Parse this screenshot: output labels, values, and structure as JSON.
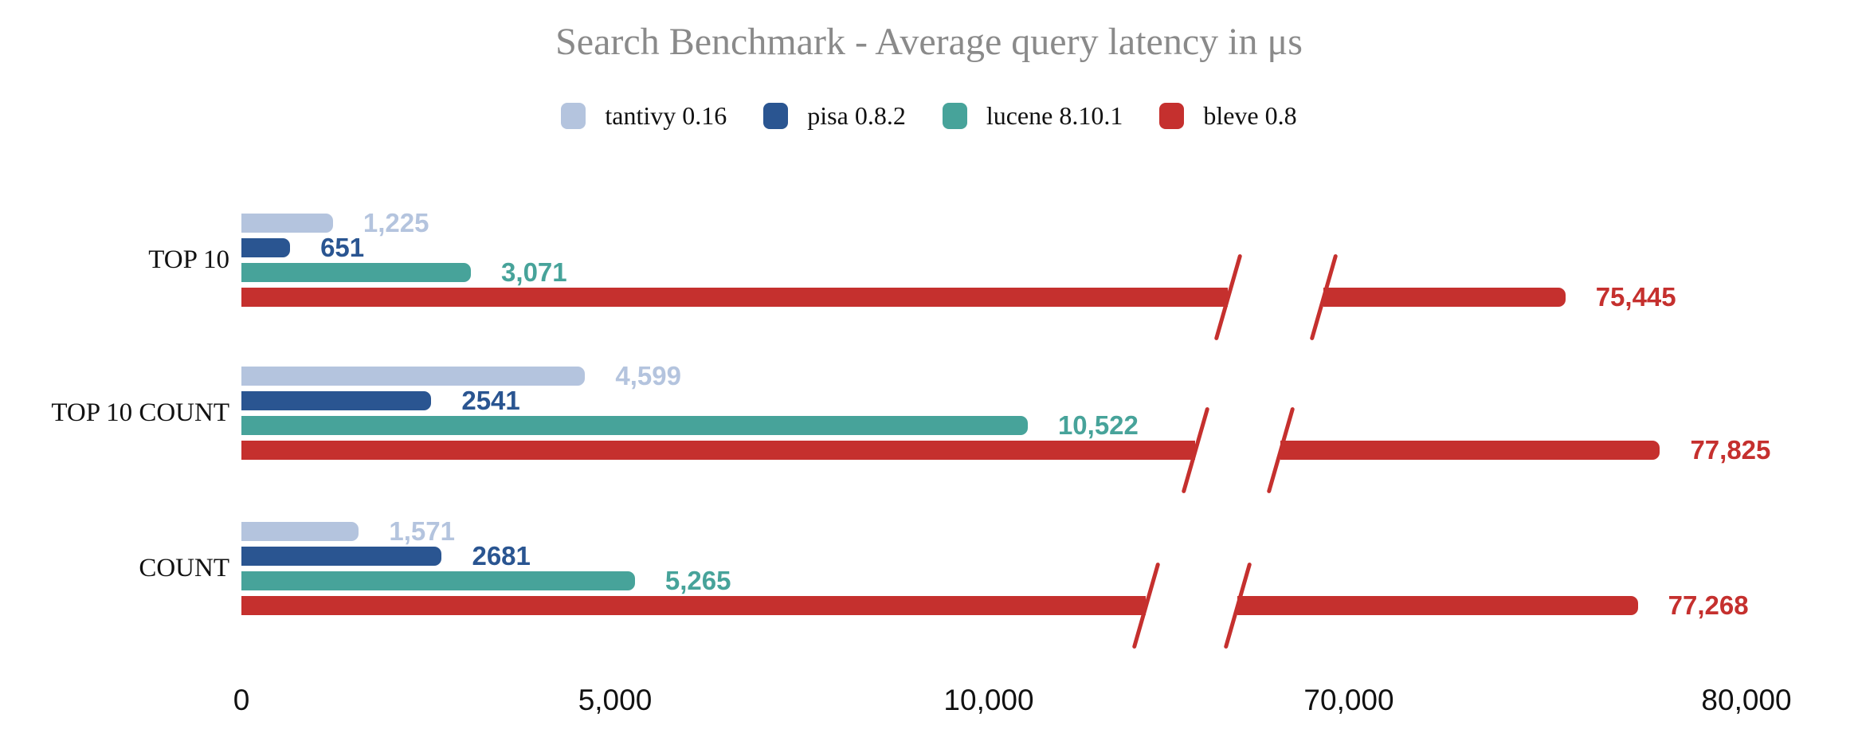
{
  "chart_data": {
    "type": "bar",
    "orientation": "horizontal",
    "title": "Search Benchmark - Average query latency in μs",
    "title_color": "#8a8a8a",
    "categories": [
      "TOP 10",
      "TOP 10 COUNT",
      "COUNT"
    ],
    "series": [
      {
        "name": "tantivy 0.16",
        "color": "#b4c4de",
        "values": [
          1225,
          4599,
          1571
        ],
        "labels": [
          "1,225",
          "4,599",
          "1,571"
        ]
      },
      {
        "name": "pisa 0.8.2",
        "color": "#2a5591",
        "values": [
          651,
          2541,
          2681
        ],
        "labels": [
          "651",
          "2541",
          "2681"
        ]
      },
      {
        "name": "lucene 8.10.1",
        "color": "#47a39a",
        "values": [
          3071,
          10522,
          5265
        ],
        "labels": [
          "3,071",
          "10,522",
          "5,265"
        ]
      },
      {
        "name": "bleve 0.8",
        "color": "#c5302e",
        "values": [
          75445,
          77825,
          77268
        ],
        "labels": [
          "75,445",
          "77,825",
          "77,268"
        ]
      }
    ],
    "x_ticks": [
      {
        "value": 0,
        "label": "0"
      },
      {
        "value": 5000,
        "label": "5,000"
      },
      {
        "value": 10000,
        "label": "10,000"
      },
      {
        "value": 70000,
        "label": "70,000"
      },
      {
        "value": 80000,
        "label": "80,000"
      }
    ],
    "axis_break": {
      "enabled": true,
      "between": [
        12000,
        69000
      ]
    },
    "legend_position": "top",
    "grid": false,
    "background": "#ffffff",
    "xlabel": "",
    "ylabel": ""
  }
}
